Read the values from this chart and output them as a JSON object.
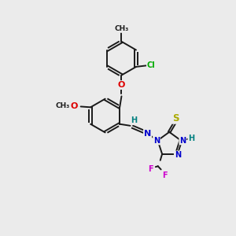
{
  "bg_color": "#ebebeb",
  "bond_color": "#1a1a1a",
  "bond_width": 1.4,
  "atom_colors": {
    "C": "#1a1a1a",
    "H": "#008080",
    "N": "#0000cc",
    "O": "#dd0000",
    "S": "#aaaa00",
    "F": "#cc00cc",
    "Cl": "#00aa00",
    "Me": "#1a1a1a",
    "OMe": "#dd0000"
  },
  "font_size": 7.0,
  "fig_size": [
    3.0,
    3.0
  ],
  "dpi": 100,
  "xlim": [
    0,
    10
  ],
  "ylim": [
    0,
    10
  ]
}
